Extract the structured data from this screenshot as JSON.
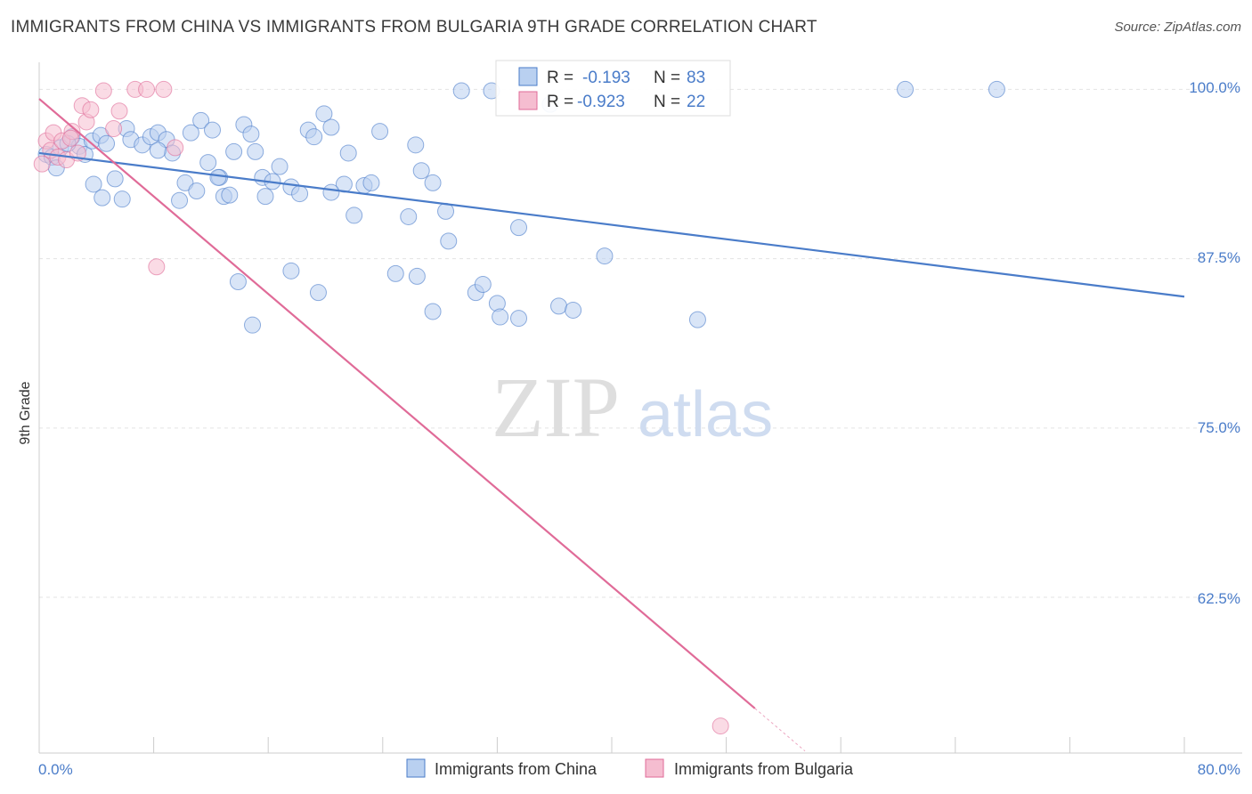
{
  "title": "IMMIGRANTS FROM CHINA VS IMMIGRANTS FROM BULGARIA 9TH GRADE CORRELATION CHART",
  "source": "Source: ZipAtlas.com",
  "watermark": {
    "zip": "ZIP",
    "atlas": "atlas"
  },
  "colors": {
    "china": "#4a7cc9",
    "china_fill": "#b9d0f0",
    "bulgaria": "#e06b98",
    "bulgaria_fill": "#f5bdd0",
    "axis_text": "#4a7cc9",
    "grid": "#e3e3e3"
  },
  "stats": {
    "china": {
      "r_label": "R =",
      "r": "-0.193",
      "n_label": "N =",
      "n": "83"
    },
    "bulgaria": {
      "r_label": "R =",
      "r": "-0.923",
      "n_label": "N =",
      "n": "22"
    }
  },
  "legend": {
    "china": "Immigrants from China",
    "bulgaria": "Immigrants from Bulgaria"
  },
  "chart_data": {
    "type": "scatter",
    "title": "IMMIGRANTS FROM CHINA VS IMMIGRANTS FROM BULGARIA 9TH GRADE CORRELATION CHART",
    "xlabel": "",
    "ylabel": "9th Grade",
    "xlim": [
      0,
      80
    ],
    "ylim": [
      51,
      102
    ],
    "x_tick_labels": [
      "0.0%",
      "80.0%"
    ],
    "y_ticks": [
      62.5,
      75.0,
      87.5,
      100.0
    ],
    "y_tick_labels": [
      "62.5%",
      "75.0%",
      "87.5%",
      "100.0%"
    ],
    "grid": true,
    "legend_position": "bottom",
    "series": [
      {
        "name": "Immigrants from China",
        "color": "#4a7cc9",
        "trend": {
          "x": [
            0,
            80
          ],
          "y": [
            95.3,
            84.7
          ]
        },
        "points": [
          [
            0.5,
            95.2
          ],
          [
            0.9,
            95.0
          ],
          [
            1.2,
            94.2
          ],
          [
            1.5,
            95.7
          ],
          [
            2.3,
            96.5
          ],
          [
            2.8,
            95.8
          ],
          [
            3.2,
            95.2
          ],
          [
            3.7,
            96.2
          ],
          [
            4.3,
            96.6
          ],
          [
            4.7,
            96.0
          ],
          [
            5.3,
            93.4
          ],
          [
            6.1,
            97.1
          ],
          [
            6.4,
            96.3
          ],
          [
            7.2,
            95.9
          ],
          [
            7.8,
            96.5
          ],
          [
            8.3,
            96.8
          ],
          [
            8.9,
            96.3
          ],
          [
            9.3,
            95.3
          ],
          [
            10.2,
            93.1
          ],
          [
            10.6,
            96.8
          ],
          [
            11.0,
            92.5
          ],
          [
            11.3,
            97.7
          ],
          [
            11.8,
            94.6
          ],
          [
            12.1,
            97.0
          ],
          [
            12.6,
            93.5
          ],
          [
            12.9,
            92.1
          ],
          [
            13.3,
            92.2
          ],
          [
            13.6,
            95.4
          ],
          [
            14.3,
            97.4
          ],
          [
            14.8,
            96.7
          ],
          [
            15.1,
            95.4
          ],
          [
            15.6,
            93.5
          ],
          [
            15.8,
            92.1
          ],
          [
            16.3,
            93.2
          ],
          [
            16.8,
            94.3
          ],
          [
            17.6,
            92.8
          ],
          [
            18.2,
            92.3
          ],
          [
            18.8,
            97.0
          ],
          [
            19.2,
            96.5
          ],
          [
            19.9,
            98.2
          ],
          [
            20.4,
            97.2
          ],
          [
            21.3,
            93.0
          ],
          [
            21.6,
            95.3
          ],
          [
            22.0,
            90.7
          ],
          [
            22.7,
            92.9
          ],
          [
            23.2,
            93.1
          ],
          [
            23.8,
            96.9
          ],
          [
            25.8,
            90.6
          ],
          [
            26.3,
            95.9
          ],
          [
            26.7,
            94.0
          ],
          [
            27.5,
            93.1
          ],
          [
            28.4,
            91.0
          ],
          [
            28.6,
            88.8
          ],
          [
            29.5,
            99.9
          ],
          [
            30.5,
            85.0
          ],
          [
            31.6,
            99.9
          ],
          [
            32.0,
            84.2
          ],
          [
            33.5,
            89.8
          ],
          [
            35.7,
            98.9
          ],
          [
            36.3,
            84.0
          ],
          [
            37.3,
            83.7
          ],
          [
            39.5,
            87.7
          ],
          [
            46.0,
            83.0
          ],
          [
            60.5,
            100.0
          ],
          [
            66.9,
            100.0
          ],
          [
            8.3,
            95.5
          ],
          [
            3.8,
            93.0
          ],
          [
            12.5,
            93.5
          ],
          [
            4.4,
            92.0
          ],
          [
            2.0,
            96.0
          ],
          [
            20.4,
            92.4
          ],
          [
            14.9,
            82.6
          ],
          [
            19.5,
            85.0
          ],
          [
            17.6,
            86.6
          ],
          [
            13.9,
            85.8
          ],
          [
            9.8,
            91.8
          ],
          [
            5.8,
            91.9
          ],
          [
            24.9,
            86.4
          ],
          [
            26.4,
            86.2
          ],
          [
            27.5,
            83.6
          ],
          [
            31.0,
            85.6
          ],
          [
            32.2,
            83.2
          ],
          [
            33.5,
            83.1
          ]
        ]
      },
      {
        "name": "Immigrants from Bulgaria",
        "color": "#e06b98",
        "trend": {
          "x": [
            0,
            50
          ],
          "y": [
            99.3,
            54.3
          ]
        },
        "points": [
          [
            0.2,
            94.5
          ],
          [
            0.5,
            96.2
          ],
          [
            0.8,
            95.5
          ],
          [
            1.0,
            96.8
          ],
          [
            1.3,
            95.0
          ],
          [
            1.6,
            96.2
          ],
          [
            1.9,
            94.8
          ],
          [
            2.3,
            96.9
          ],
          [
            2.7,
            95.3
          ],
          [
            3.0,
            98.8
          ],
          [
            3.3,
            97.6
          ],
          [
            3.6,
            98.5
          ],
          [
            4.5,
            99.9
          ],
          [
            5.2,
            97.1
          ],
          [
            5.6,
            98.4
          ],
          [
            6.7,
            100.0
          ],
          [
            7.5,
            100.0
          ],
          [
            8.7,
            100.0
          ],
          [
            9.5,
            95.7
          ],
          [
            2.2,
            96.4
          ],
          [
            8.2,
            86.9
          ],
          [
            47.6,
            53.0
          ]
        ]
      }
    ]
  }
}
